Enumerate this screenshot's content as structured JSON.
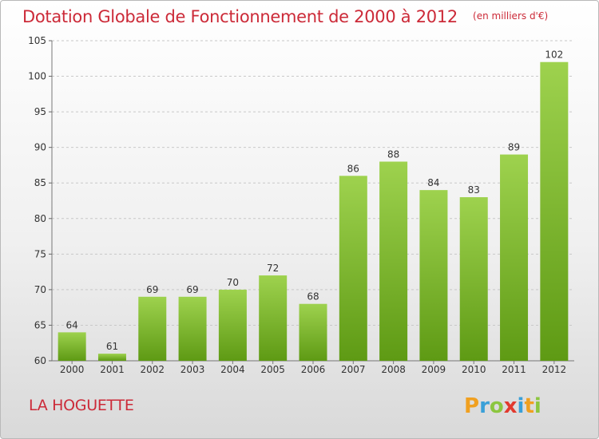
{
  "chart_data": {
    "type": "bar",
    "title": "Dotation Globale de Fonctionnement de 2000 à 2012",
    "subtitle": "(en milliers d'€)",
    "categories": [
      "2000",
      "2001",
      "2002",
      "2003",
      "2004",
      "2005",
      "2006",
      "2007",
      "2008",
      "2009",
      "2010",
      "2011",
      "2012"
    ],
    "values": [
      64,
      61,
      69,
      69,
      70,
      72,
      68,
      86,
      88,
      84,
      83,
      89,
      102
    ],
    "ylim": [
      60,
      105
    ],
    "yticks": [
      60,
      65,
      70,
      75,
      80,
      85,
      90,
      95,
      100,
      105
    ],
    "grid": true,
    "bar_color_top": "#9ed24e",
    "bar_color_bottom": "#5e9a14"
  },
  "footer": {
    "commune": "LA HOGUETTE",
    "logo_text": "Proxiti"
  },
  "colors": {
    "title": "#cc2a38",
    "axis_text": "#333333",
    "grid": "#c8c8c8"
  }
}
